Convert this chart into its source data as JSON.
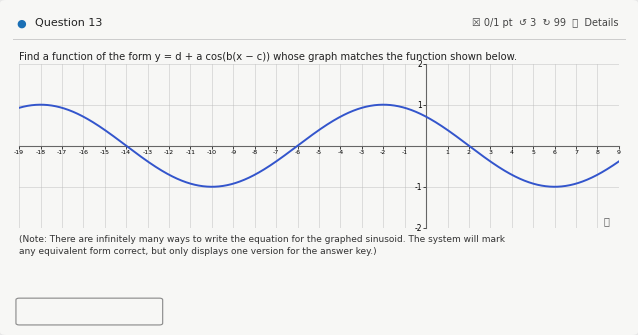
{
  "a": 1,
  "d": 0,
  "b": 0.392699081698724,
  "c": -2,
  "x_min": -19,
  "x_max": 9,
  "y_min": -2,
  "y_max": 2,
  "x_ticks": [
    -19,
    -18,
    -17,
    -16,
    -15,
    -14,
    -13,
    -12,
    -11,
    -10,
    -9,
    -8,
    -7,
    -6,
    -5,
    -4,
    -3,
    -2,
    -1,
    0,
    1,
    2,
    3,
    4,
    5,
    6,
    7,
    8,
    9
  ],
  "y_ticks": [
    -2,
    -1,
    0,
    1,
    2
  ],
  "line_color": "#3355cc",
  "page_bg": "#e8e8e8",
  "card_bg": "#f7f7f5",
  "grid_color": "#bbbbbb",
  "header_dot_color": "#1a6fb5",
  "figsize": [
    6.38,
    3.35
  ],
  "dpi": 100,
  "header_left": "Question 13",
  "header_right": "☒ 0/1 pt  ↺ 3  ↻ 99  ⓘ  Details",
  "instruction": "Find a function of the form y = d + a cos(b(x − c)) whose graph matches the function shown below.",
  "note": "(Note: There are infinitely many ways to write the equation for the graphed sinusoid. The system will mark\nany equivalent form correct, but only displays one version for the answer key.)"
}
